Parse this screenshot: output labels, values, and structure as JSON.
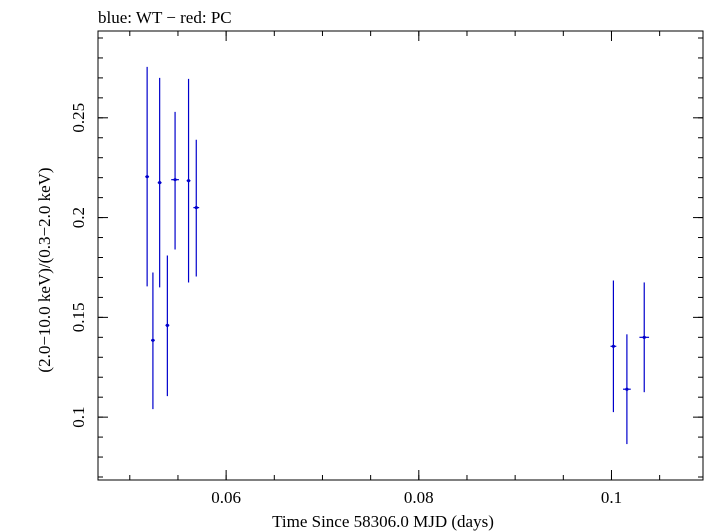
{
  "chart_data": {
    "type": "scatter",
    "title": "blue: WT − red: PC",
    "xlabel": "Time Since 58306.0 MJD (days)",
    "ylabel": "(2.0−10.0 keV)/(0.3−2.0 keV)",
    "xlim": [
      0.0467,
      0.1095
    ],
    "ylim": [
      0.0685,
      0.2935
    ],
    "x_ticks": [
      {
        "value": 0.06,
        "label": "0.06"
      },
      {
        "value": 0.08,
        "label": "0.08"
      },
      {
        "value": 0.1,
        "label": "0.1"
      }
    ],
    "y_ticks": [
      {
        "value": 0.1,
        "label": "0.1"
      },
      {
        "value": 0.15,
        "label": "0.15"
      },
      {
        "value": 0.2,
        "label": "0.2"
      },
      {
        "value": 0.25,
        "label": "0.25"
      }
    ],
    "x_minor_step": 0.005,
    "y_minor_step": 0.01,
    "grid": false,
    "series": [
      {
        "name": "WT",
        "color": "#0000cc",
        "points": [
          {
            "x": 0.0518,
            "xerr": 0.0002,
            "y": 0.2205,
            "ylo": 0.1655,
            "yhi": 0.2755
          },
          {
            "x": 0.0524,
            "xerr": 0.0002,
            "y": 0.1385,
            "ylo": 0.104,
            "yhi": 0.1725
          },
          {
            "x": 0.0531,
            "xerr": 0.0002,
            "y": 0.2175,
            "ylo": 0.165,
            "yhi": 0.27
          },
          {
            "x": 0.0539,
            "xerr": 0.0002,
            "y": 0.146,
            "ylo": 0.1105,
            "yhi": 0.181
          },
          {
            "x": 0.0547,
            "xerr": 0.0004,
            "y": 0.219,
            "ylo": 0.184,
            "yhi": 0.253
          },
          {
            "x": 0.0561,
            "xerr": 0.0002,
            "y": 0.2185,
            "ylo": 0.1675,
            "yhi": 0.2695
          },
          {
            "x": 0.0569,
            "xerr": 0.0003,
            "y": 0.205,
            "ylo": 0.1705,
            "yhi": 0.239
          },
          {
            "x": 0.1002,
            "xerr": 0.0003,
            "y": 0.1355,
            "ylo": 0.1025,
            "yhi": 0.1685
          },
          {
            "x": 0.1016,
            "xerr": 0.0004,
            "y": 0.114,
            "ylo": 0.0865,
            "yhi": 0.1415
          },
          {
            "x": 0.1034,
            "xerr": 0.0005,
            "y": 0.14,
            "ylo": 0.1125,
            "yhi": 0.1675
          }
        ]
      }
    ]
  }
}
